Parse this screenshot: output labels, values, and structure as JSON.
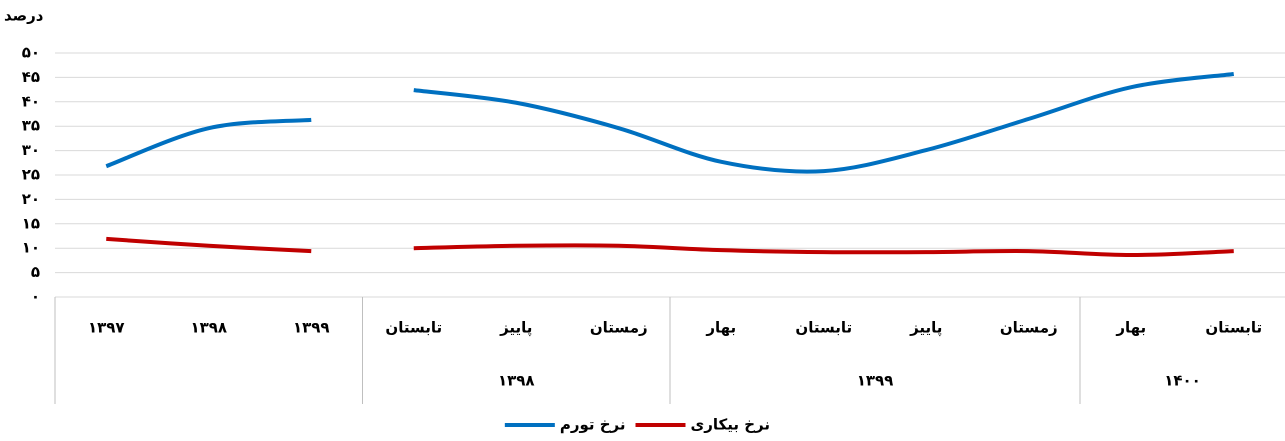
{
  "chart_data": {
    "type": "line",
    "y_label": "درصد",
    "ylim": [
      0,
      50
    ],
    "yticks": [
      {
        "value": 0,
        "label": "۰"
      },
      {
        "value": 5,
        "label": "۵"
      },
      {
        "value": 10,
        "label": "۱۰"
      },
      {
        "value": 15,
        "label": "۱۵"
      },
      {
        "value": 20,
        "label": "۲۰"
      },
      {
        "value": 25,
        "label": "۲۵"
      },
      {
        "value": 30,
        "label": "۳۰"
      },
      {
        "value": 35,
        "label": "۳۵"
      },
      {
        "value": 40,
        "label": "۴۰"
      },
      {
        "value": 45,
        "label": "۴۵"
      },
      {
        "value": 50,
        "label": "۵۰"
      }
    ],
    "grid": true,
    "groups": [
      {
        "categories": [
          "۱۳۹۷",
          "۱۳۹۸",
          "۱۳۹۹"
        ]
      },
      {
        "label": "۱۳۹۸",
        "categories": [
          "تابستان",
          "پاییز",
          "زمستان"
        ]
      },
      {
        "label": "۱۳۹۹",
        "categories": [
          "بهار",
          "تابستان",
          "پاییز",
          "زمستان"
        ]
      },
      {
        "label": "۱۴۰۰",
        "categories": [
          "بهار",
          "تابستان"
        ]
      }
    ],
    "series": [
      {
        "name": "نرخ تورم",
        "color": "#0070c0",
        "values": [
          [
            26.8,
            34.6,
            36.3
          ],
          [
            42.4,
            39.8,
            34.6,
            27.7,
            25.8,
            30.1,
            36.5,
            43.0,
            45.7
          ]
        ]
      },
      {
        "name": "نرخ بیکاری",
        "color": "#c00000",
        "values": [
          [
            11.9,
            10.5,
            9.4
          ],
          [
            10.0,
            10.5,
            10.5,
            9.6,
            9.2,
            9.2,
            9.4,
            8.6,
            9.4
          ]
        ]
      }
    ]
  }
}
